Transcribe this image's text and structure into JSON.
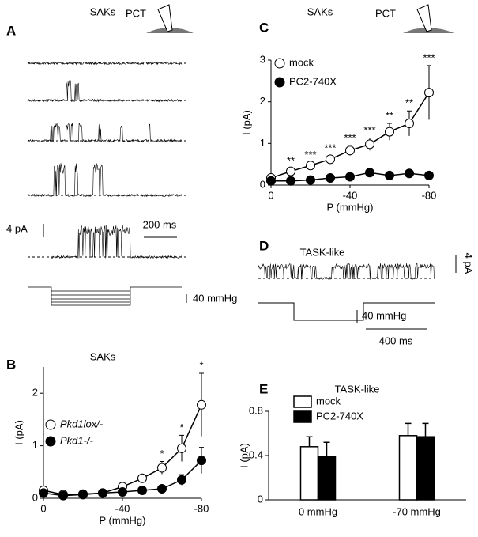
{
  "figure": {
    "A": {
      "panel": "A",
      "title": "SAKs",
      "pct": "PCT",
      "current_scale": "4 pA",
      "time_scale": "200 ms",
      "pressure_scale": "40 mmHg"
    },
    "D": {
      "panel": "D",
      "title": "TASK-like",
      "current_scale": "4 pA",
      "pressure_scale": "40 mmHg",
      "time_scale": "400 ms"
    },
    "C_header": {
      "title": "SAKs",
      "pct": "PCT"
    }
  },
  "chart_data": [
    {
      "type": "line",
      "panel": "B",
      "title": "SAKs",
      "xlabel": "P (mmHg)",
      "ylabel": "I (pA)",
      "x": [
        0,
        -10,
        -20,
        -30,
        -40,
        -50,
        -60,
        -70,
        -80
      ],
      "xlim": [
        0,
        -80
      ],
      "xticks": [
        0,
        -40,
        -80
      ],
      "ylim": [
        0,
        2.5
      ],
      "yticks": [
        0,
        1,
        2
      ],
      "series": [
        {
          "name": "Pkd1lox/-",
          "color": "#ffffff",
          "values": [
            0.15,
            0.07,
            0.08,
            0.1,
            0.22,
            0.38,
            0.58,
            0.95,
            1.78
          ],
          "errors": [
            0.03,
            0.02,
            0.02,
            0.03,
            0.05,
            0.07,
            0.12,
            0.25,
            0.6
          ]
        },
        {
          "name": "Pkd1-/-",
          "color": "#000000",
          "values": [
            0.1,
            0.05,
            0.07,
            0.1,
            0.12,
            0.15,
            0.18,
            0.35,
            0.72
          ],
          "errors": [
            0.02,
            0.01,
            0.02,
            0.02,
            0.02,
            0.03,
            0.04,
            0.1,
            0.25
          ]
        }
      ],
      "annotations": [
        {
          "x": -60,
          "text": "*"
        },
        {
          "x": -70,
          "text": "*"
        },
        {
          "x": -80,
          "text": "*"
        }
      ]
    },
    {
      "type": "line",
      "panel": "C",
      "xlabel": "P (mmHg)",
      "ylabel": "I (pA)",
      "x": [
        0,
        -10,
        -20,
        -30,
        -40,
        -50,
        -60,
        -70,
        -80
      ],
      "xlim": [
        0,
        -80
      ],
      "xticks": [
        0,
        -40,
        -80
      ],
      "ylim": [
        0,
        3
      ],
      "yticks": [
        0,
        1,
        2,
        3
      ],
      "series": [
        {
          "name": "mock",
          "color": "#ffffff",
          "values": [
            0.17,
            0.33,
            0.47,
            0.62,
            0.83,
            0.98,
            1.28,
            1.48,
            2.22
          ],
          "errors": [
            0.05,
            0.07,
            0.07,
            0.08,
            0.12,
            0.15,
            0.2,
            0.3,
            0.65
          ]
        },
        {
          "name": "PC2-740X",
          "color": "#000000",
          "values": [
            0.1,
            0.1,
            0.12,
            0.17,
            0.2,
            0.3,
            0.23,
            0.28,
            0.23
          ],
          "errors": [
            0.02,
            0.02,
            0.03,
            0.03,
            0.03,
            0.04,
            0.04,
            0.05,
            0.05
          ]
        }
      ],
      "annotations": [
        {
          "x": -10,
          "text": "**"
        },
        {
          "x": -20,
          "text": "***"
        },
        {
          "x": -30,
          "text": "***"
        },
        {
          "x": -40,
          "text": "***"
        },
        {
          "x": -50,
          "text": "***"
        },
        {
          "x": -60,
          "text": "**"
        },
        {
          "x": -70,
          "text": "**"
        },
        {
          "x": -80,
          "text": "***"
        }
      ]
    },
    {
      "type": "bar",
      "panel": "E",
      "title": "TASK-like",
      "ylabel": "I (pA)",
      "categories": [
        "0 mmHg",
        "-70 mmHg"
      ],
      "ylim": [
        0,
        0.8
      ],
      "yticks": [
        0,
        0.4,
        0.8
      ],
      "series": [
        {
          "name": "mock",
          "color": "#ffffff",
          "values": [
            0.48,
            0.58
          ],
          "errors": [
            0.09,
            0.11
          ]
        },
        {
          "name": "PC2-740X",
          "color": "#000000",
          "values": [
            0.39,
            0.57
          ],
          "errors": [
            0.13,
            0.12
          ]
        }
      ]
    }
  ]
}
